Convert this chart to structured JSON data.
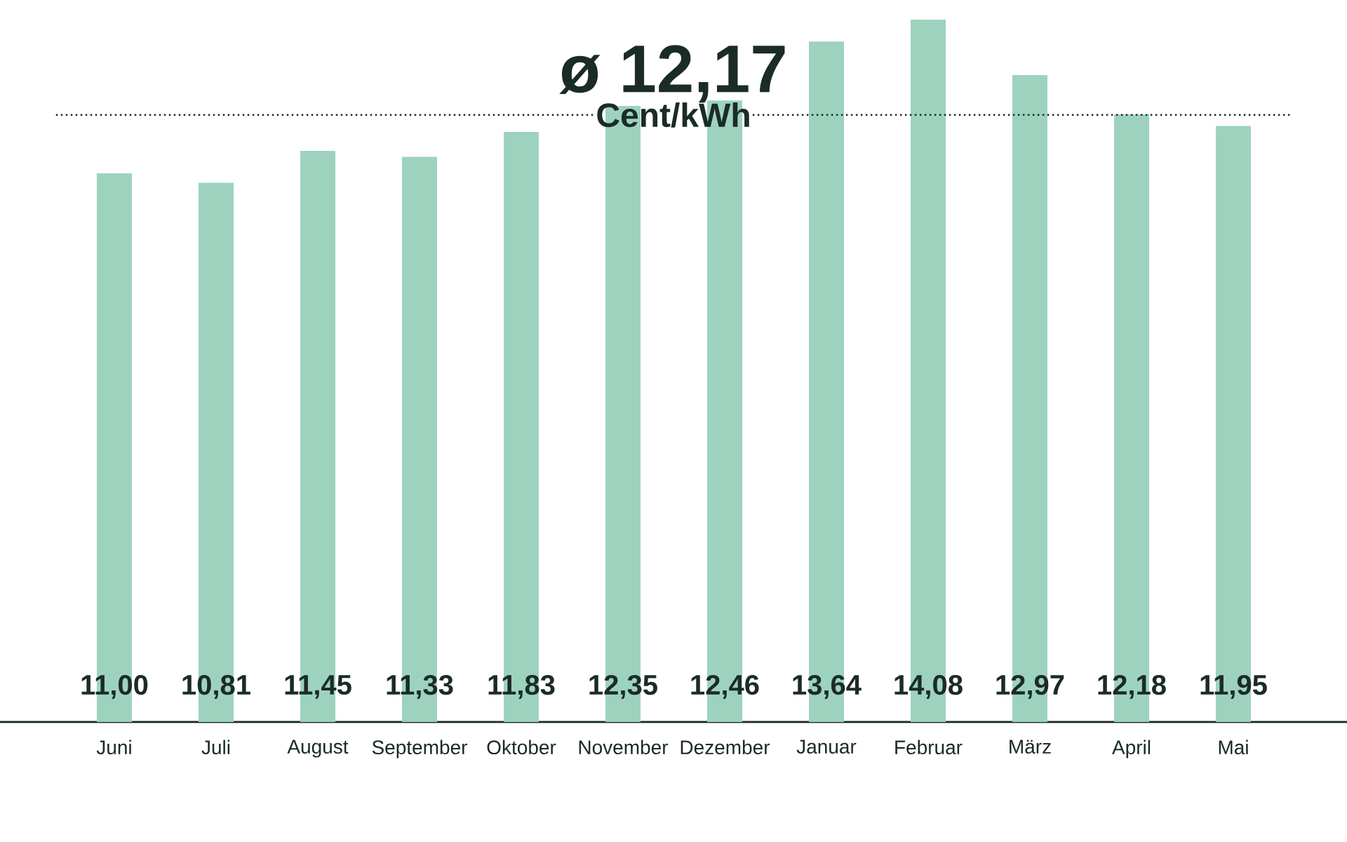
{
  "chart_data": {
    "type": "bar",
    "categories": [
      "Juni",
      "Juli",
      "August",
      "September",
      "Oktober",
      "November",
      "Dezember",
      "Januar",
      "Februar",
      "März",
      "April",
      "Mai"
    ],
    "values": [
      11.0,
      10.81,
      11.45,
      11.33,
      11.83,
      12.35,
      12.46,
      13.64,
      14.08,
      12.97,
      12.18,
      11.95
    ],
    "value_labels": [
      "11,00",
      "10,81",
      "11,45",
      "11,33",
      "11,83",
      "12,35",
      "12,46",
      "13,64",
      "14,08",
      "12,97",
      "12,18",
      "11,95"
    ],
    "color": "#9dd3be",
    "ref_lines": [
      {
        "axis": "y",
        "value": 12.17,
        "label": "ø 12,17",
        "line_style": "dotted",
        "color": "#1b2b28"
      }
    ],
    "annotations": [
      "Cent/kWh"
    ]
  }
}
